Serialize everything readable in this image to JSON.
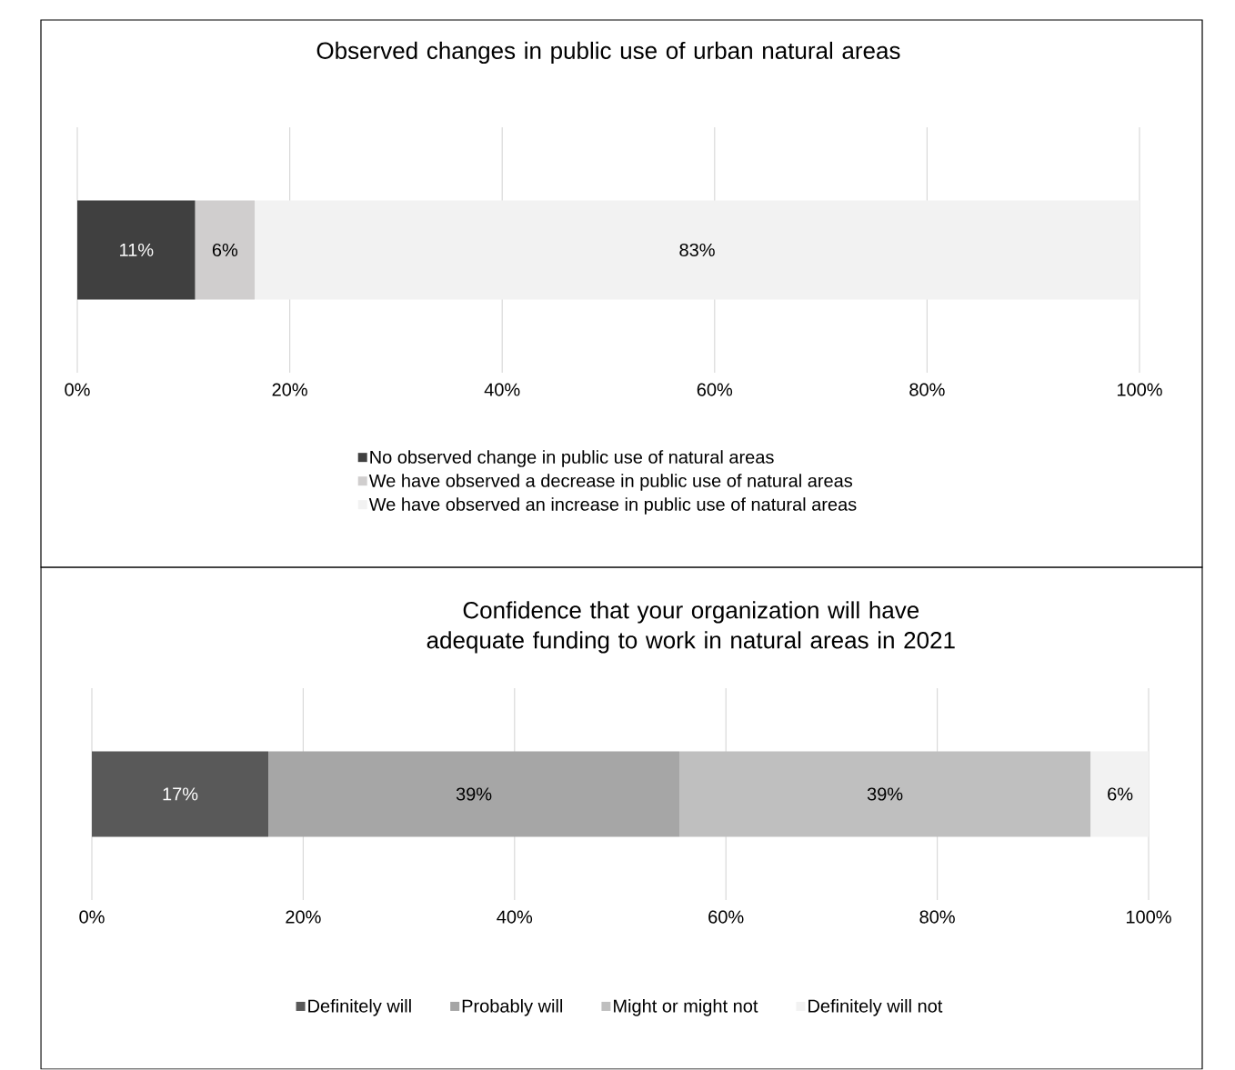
{
  "chart_data": [
    {
      "type": "bar",
      "orientation": "horizontal",
      "stacked": true,
      "title": "Observed changes in public use of urban natural areas",
      "categories": [
        null
      ],
      "xlim": [
        0,
        100
      ],
      "xticks": [
        {
          "value": 0,
          "label": "0%"
        },
        {
          "value": 20,
          "label": "20%"
        },
        {
          "value": 40,
          "label": "40%"
        },
        {
          "value": 60,
          "label": "60%"
        },
        {
          "value": 80,
          "label": "80%"
        },
        {
          "value": 100,
          "label": "100%"
        }
      ],
      "grid": "x",
      "legend": "bottom",
      "series": [
        {
          "name": "No observed change in public use of natural areas",
          "color": "#404040",
          "values": [
            11.1
          ],
          "value_labels": [
            "11%"
          ]
        },
        {
          "name": "We have observed a decrease in public use of natural areas",
          "color": "#d0cece",
          "values": [
            5.6
          ],
          "value_labels": [
            "6%"
          ]
        },
        {
          "name": "We have observed an increase in public use of natural areas",
          "color": "#f2f2f2",
          "values": [
            83.3
          ],
          "value_labels": [
            "83%"
          ]
        }
      ]
    },
    {
      "type": "bar",
      "orientation": "horizontal",
      "stacked": true,
      "title": "Confidence that your organization will have adequate funding to work in natural areas in 2021",
      "categories": [
        null
      ],
      "xlim": [
        0,
        100
      ],
      "xticks": [
        {
          "value": 0,
          "label": "0%"
        },
        {
          "value": 20,
          "label": "20%"
        },
        {
          "value": 40,
          "label": "40%"
        },
        {
          "value": 60,
          "label": "60%"
        },
        {
          "value": 80,
          "label": "80%"
        },
        {
          "value": 100,
          "label": "100%"
        }
      ],
      "grid": "x",
      "legend": "bottom",
      "series": [
        {
          "name": "Definitely will",
          "color": "#595959",
          "values": [
            16.7
          ],
          "value_labels": [
            "17%"
          ]
        },
        {
          "name": "Probably will",
          "color": "#a6a6a6",
          "values": [
            38.9
          ],
          "value_labels": [
            "39%"
          ]
        },
        {
          "name": "Might or might not",
          "color": "#bfbfbf",
          "values": [
            38.9
          ],
          "value_labels": [
            "39%"
          ]
        },
        {
          "name": "Definitely will not",
          "color": "#f2f2f2",
          "values": [
            5.6
          ],
          "value_labels": [
            "6%"
          ]
        }
      ]
    }
  ]
}
